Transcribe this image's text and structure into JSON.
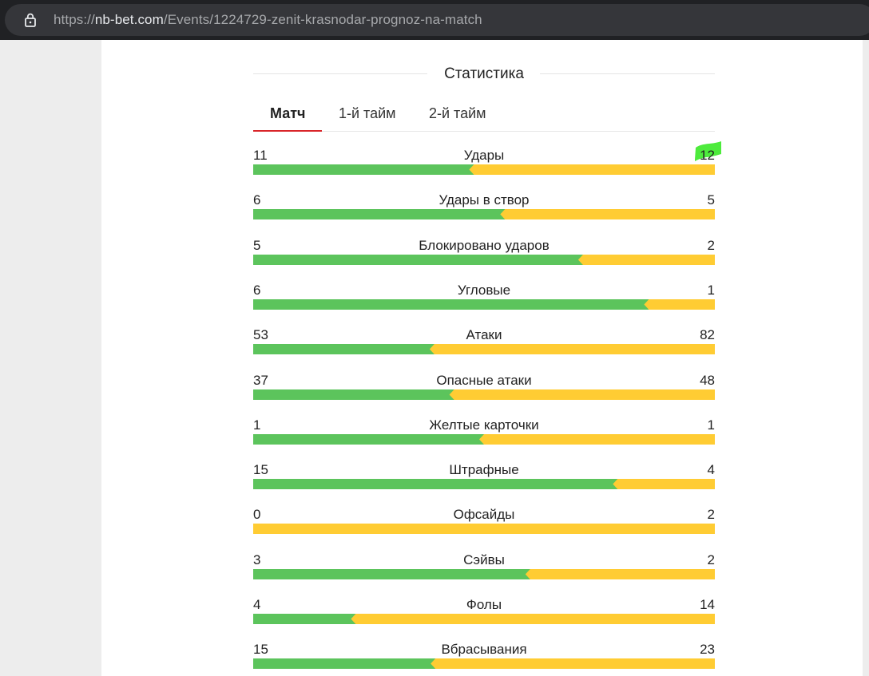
{
  "browser": {
    "url_scheme": "https://",
    "url_domain": "nb-bet.com",
    "url_path": "/Events/1224729-zenit-krasnodar-prognoz-na-match"
  },
  "colors": {
    "home_bar": "#5cc45c",
    "away_bar": "#ffcc33",
    "tab_active_underline": "#d9252a",
    "highlight": "#2ee81a"
  },
  "stats": {
    "title": "Статистика",
    "tabs": [
      {
        "label": "Матч",
        "active": true
      },
      {
        "label": "1-й тайм",
        "active": false
      },
      {
        "label": "2-й тайм",
        "active": false
      }
    ],
    "rows": [
      {
        "label": "Удары",
        "home": 11,
        "away": 12
      },
      {
        "label": "Удары в створ",
        "home": 6,
        "away": 5
      },
      {
        "label": "Блокировано ударов",
        "home": 5,
        "away": 2
      },
      {
        "label": "Угловые",
        "home": 6,
        "away": 1
      },
      {
        "label": "Атаки",
        "home": 53,
        "away": 82
      },
      {
        "label": "Опасные атаки",
        "home": 37,
        "away": 48
      },
      {
        "label": "Желтые карточки",
        "home": 1,
        "away": 1
      },
      {
        "label": "Штрафные",
        "home": 15,
        "away": 4
      },
      {
        "label": "Офсайды",
        "home": 0,
        "away": 2
      },
      {
        "label": "Сэйвы",
        "home": 3,
        "away": 2
      },
      {
        "label": "Фолы",
        "home": 4,
        "away": 14
      },
      {
        "label": "Вбрасывания",
        "home": 15,
        "away": 23
      }
    ]
  }
}
